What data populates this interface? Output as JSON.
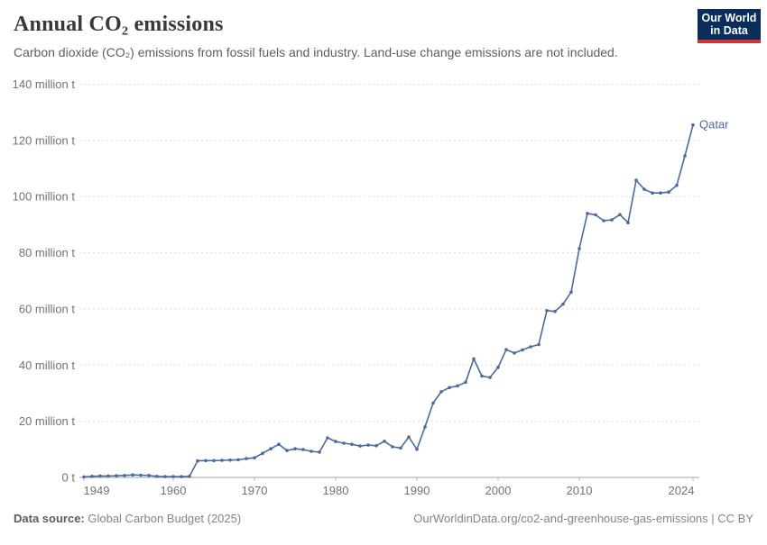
{
  "header": {
    "title": "Annual CO₂ emissions",
    "subtitle": "Carbon dioxide (CO₂) emissions from fossil fuels and industry. Land-use change emissions are not included.",
    "logo": {
      "line1": "Our World",
      "line2": "in Data",
      "bg_color": "#0b2d5b",
      "accent_color": "#cf342e"
    }
  },
  "footer": {
    "source_label": "Data source:",
    "source_value": " Global Carbon Budget (2025)",
    "link": "OurWorldinData.org/co2-and-greenhouse-gas-emissions | CC BY"
  },
  "chart_data": {
    "type": "line",
    "title": "Annual CO₂ emissions",
    "unit": "million tonnes",
    "grid": "horizontal dashed",
    "legend_position": "end-of-line label",
    "line_color": "#4c6a9e",
    "axis_text_color": "#737373",
    "xlim": [
      1949,
      2025
    ],
    "ylim": [
      0,
      140
    ],
    "x_ticks": [
      "1949",
      "1960",
      "1970",
      "1980",
      "1990",
      "2000",
      "2010",
      "2024"
    ],
    "x_tick_years": [
      1949,
      1960,
      1970,
      1980,
      1990,
      2000,
      2010,
      2024
    ],
    "y_ticks": [
      {
        "value": 0,
        "label": "0 t"
      },
      {
        "value": 20,
        "label": "20 million t"
      },
      {
        "value": 40,
        "label": "40 million t"
      },
      {
        "value": 60,
        "label": "60 million t"
      },
      {
        "value": 80,
        "label": "80 million t"
      },
      {
        "value": 100,
        "label": "100 million t"
      },
      {
        "value": 120,
        "label": "120 million t"
      },
      {
        "value": 140,
        "label": "140 million t"
      }
    ],
    "series": [
      {
        "name": "Qatar",
        "color": "#4c6a9e",
        "x": [
          1949,
          1950,
          1951,
          1952,
          1953,
          1954,
          1955,
          1956,
          1957,
          1958,
          1959,
          1960,
          1961,
          1962,
          1963,
          1964,
          1965,
          1966,
          1967,
          1968,
          1969,
          1970,
          1971,
          1972,
          1973,
          1974,
          1975,
          1976,
          1977,
          1978,
          1979,
          1980,
          1981,
          1982,
          1983,
          1984,
          1985,
          1986,
          1987,
          1988,
          1989,
          1990,
          1991,
          1992,
          1993,
          1994,
          1995,
          1996,
          1997,
          1998,
          1999,
          2000,
          2001,
          2002,
          2003,
          2004,
          2005,
          2006,
          2007,
          2008,
          2009,
          2010,
          2011,
          2012,
          2013,
          2014,
          2015,
          2016,
          2017,
          2018,
          2019,
          2020,
          2021,
          2022,
          2023,
          2024
        ],
        "values": [
          0.2,
          0.4,
          0.5,
          0.5,
          0.6,
          0.7,
          0.9,
          0.8,
          0.7,
          0.4,
          0.3,
          0.3,
          0.3,
          0.4,
          5.9,
          6.0,
          6.0,
          6.1,
          6.2,
          6.3,
          6.7,
          7.0,
          8.6,
          10.2,
          11.8,
          9.6,
          10.2,
          9.9,
          9.3,
          9.0,
          14.1,
          12.8,
          12.2,
          11.8,
          11.2,
          11.5,
          11.3,
          12.9,
          10.9,
          10.5,
          14.4,
          10.0,
          18.0,
          26.5,
          30.5,
          32.0,
          32.6,
          33.9,
          42.2,
          36.1,
          35.6,
          39.2,
          45.5,
          44.3,
          45.4,
          46.5,
          47.3,
          59.4,
          59.1,
          61.7,
          66.0,
          81.5,
          94.0,
          93.5,
          91.4,
          91.7,
          93.6,
          90.7,
          105.8,
          102.6,
          101.3,
          101.3,
          101.6,
          104.0,
          114.5,
          125.5
        ]
      }
    ]
  }
}
